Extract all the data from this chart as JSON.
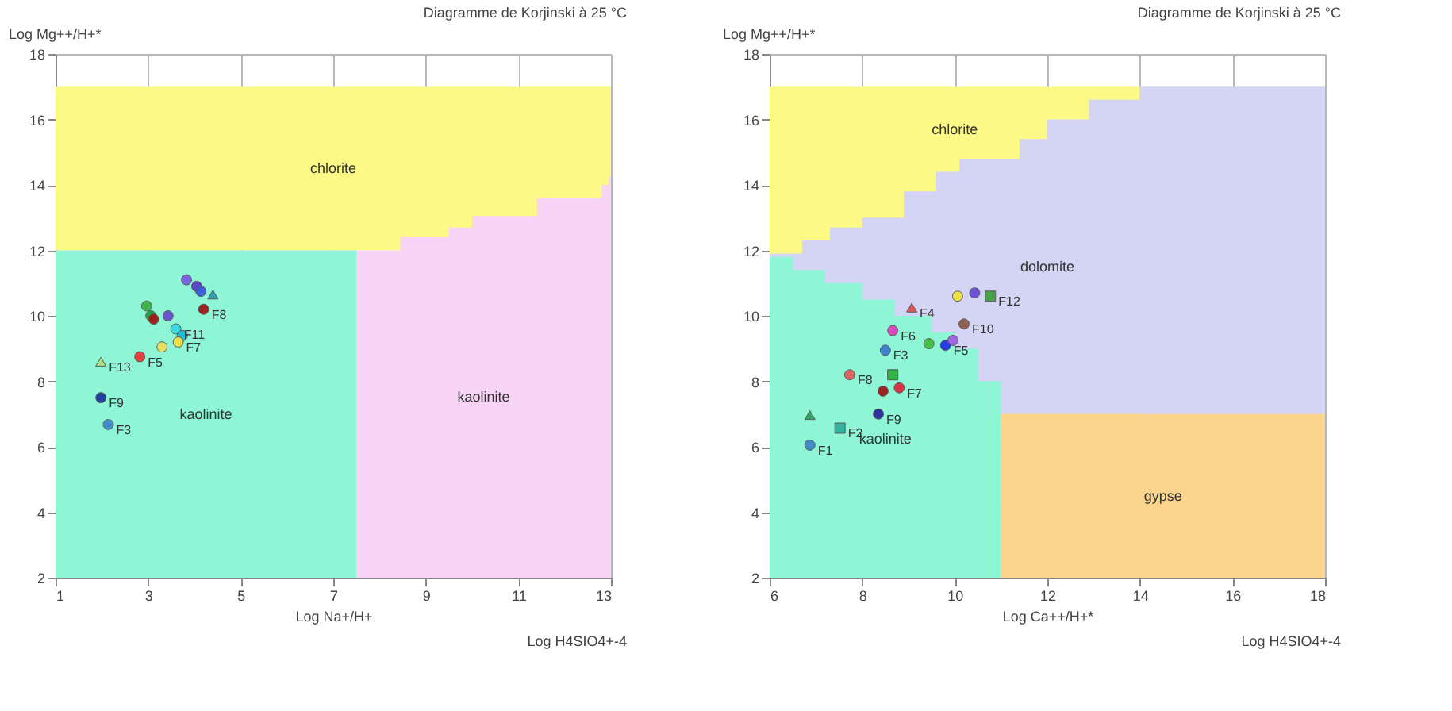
{
  "chart_data": [
    {
      "type": "scatter",
      "title": "Diagramme de Korjinski à 25 °C",
      "xlabel": "Log Na+/H+",
      "ylabel": "Log Mg++/H+*",
      "xlim": [
        1,
        13
      ],
      "ylim": [
        2,
        18
      ],
      "xticks": [
        1,
        3,
        5,
        7,
        9,
        11,
        13
      ],
      "yticks": [
        2,
        4,
        6,
        8,
        10,
        12,
        14,
        16,
        18
      ],
      "grid": true,
      "series": [
        {
          "type": "area",
          "name": "chlorite",
          "color": "#fdf987",
          "x": [
            1,
            13
          ],
          "values": [
            17,
            17
          ]
        },
        {
          "type": "area",
          "name": "kaolinite",
          "color": "#f7d3f5",
          "x": [
            7.5,
            8.45,
            8.45,
            9.5,
            9.5,
            10.0,
            10.0,
            11.4,
            11.4,
            12.8,
            12.8,
            12.95,
            12.95,
            13
          ],
          "values": [
            12,
            12,
            12.4,
            12.4,
            12.7,
            12.7,
            13.05,
            13.05,
            13.6,
            13.6,
            14.0,
            14.0,
            14.25,
            14.25
          ]
        },
        {
          "type": "area",
          "name": "kaolinite",
          "color": "#8ef5d5",
          "x": [
            1,
            7.5
          ],
          "values": [
            12,
            12
          ]
        },
        {
          "type": "scatter",
          "marker": "circle",
          "x": [
            3.83,
            4.05,
            4.14,
            4.2,
            2.97,
            3.06,
            3.12,
            3.43,
            3.6,
            3.74,
            3.65,
            3.3,
            2.82,
            1.98,
            2.14
          ],
          "values": [
            11.1,
            10.9,
            10.75,
            10.2,
            10.3,
            10.0,
            9.9,
            10.0,
            9.6,
            9.4,
            9.2,
            9.05,
            8.75,
            7.5,
            6.68
          ],
          "colors": [
            "#7a5ce0",
            "#5a3cc8",
            "#3a5ad8",
            "#a01818",
            "#3cb04a",
            "#1e9e3c",
            "#a01818",
            "#6a4cc8",
            "#38d8e0",
            "#20b8d0",
            "#f0e040",
            "#e8e060",
            "#e83838",
            "#1a3a9a",
            "#3a8ac8"
          ]
        },
        {
          "type": "scatter",
          "marker": "triangle",
          "x": [
            4.4,
            1.98
          ],
          "values": [
            10.65,
            8.6
          ],
          "colors": [
            "#2a9ab0",
            "#a8e080"
          ]
        }
      ],
      "annotations": [
        {
          "text": "F8",
          "x": 4.2,
          "y": 10.2
        },
        {
          "text": "F11",
          "x": 3.6,
          "y": 9.6
        },
        {
          "text": "F7",
          "x": 3.65,
          "y": 9.2
        },
        {
          "text": "F5",
          "x": 2.82,
          "y": 8.75
        },
        {
          "text": "F13",
          "x": 1.98,
          "y": 8.6
        },
        {
          "text": "F9",
          "x": 1.98,
          "y": 7.5
        },
        {
          "text": "F3",
          "x": 2.14,
          "y": 6.68
        },
        "Log H4SIO4+-4"
      ]
    },
    {
      "type": "scatter",
      "title": "Diagramme de Korjinski à 25 °C",
      "xlabel": "Log Ca++/H+*",
      "ylabel": "Log Mg++/H+*",
      "xlim": [
        6,
        18
      ],
      "ylim": [
        2,
        18
      ],
      "xticks": [
        6,
        8,
        10,
        12,
        14,
        16,
        18
      ],
      "yticks": [
        2,
        4,
        6,
        8,
        10,
        12,
        14,
        16,
        18
      ],
      "grid": true,
      "series": [
        {
          "type": "area",
          "name": "chlorite",
          "color": "#fdf987",
          "x": [
            6,
            14
          ],
          "values": [
            17,
            17
          ]
        },
        {
          "type": "area",
          "name": "dolomite",
          "color": "#d4d4f5",
          "x": [
            6,
            6.7,
            6.7,
            7.3,
            7.3,
            8,
            8,
            8.9,
            8.9,
            9.6,
            9.6,
            10.1,
            10.1,
            11.4,
            11.4,
            12,
            12,
            12.9,
            12.9,
            14,
            14,
            18
          ],
          "values": [
            11.9,
            11.9,
            12.3,
            12.3,
            12.7,
            12.7,
            13,
            13,
            13.8,
            13.8,
            14.4,
            14.4,
            14.8,
            14.8,
            15.4,
            15.4,
            16,
            16,
            16.6,
            16.6,
            17,
            17
          ]
        },
        {
          "type": "area",
          "name": "gypse",
          "color": "#fad48c",
          "x": [
            11,
            18
          ],
          "values": [
            7,
            7
          ]
        },
        {
          "type": "area",
          "name": "kaolinite",
          "color": "#8ef5d5",
          "x": [
            6,
            6.5,
            6.5,
            7.2,
            7.2,
            8,
            8,
            8.7,
            8.7,
            9.5,
            9.5,
            10,
            10,
            10.5,
            10.5,
            11
          ],
          "values": [
            11.8,
            11.8,
            11.4,
            11.4,
            11,
            11,
            10.5,
            10.5,
            10,
            10,
            9.5,
            9.5,
            9,
            9,
            8,
            8
          ]
        },
        {
          "type": "scatter",
          "marker": "circle",
          "x": [
            10.06,
            10.43,
            10.2,
            8.66,
            9.44,
            9.8,
            9.96,
            8.5,
            7.73,
            8.45,
            8.8,
            8.35,
            6.87
          ],
          "values": [
            10.6,
            10.7,
            9.75,
            9.55,
            9.15,
            9.1,
            9.25,
            8.95,
            8.2,
            7.7,
            7.8,
            7.0,
            6.05
          ],
          "colors": [
            "#f0e040",
            "#6a4cd8",
            "#8a5a4a",
            "#e040c0",
            "#40c040",
            "#2030e0",
            "#a060e0",
            "#3a7ad0",
            "#e06060",
            "#a01818",
            "#e02840",
            "#2a2a9a",
            "#3a8ac8"
          ]
        },
        {
          "type": "scatter",
          "marker": "square",
          "x": [
            10.77,
            8.66,
            7.52
          ],
          "values": [
            10.6,
            8.2,
            6.57
          ],
          "colors": [
            "#40a040",
            "#30b040",
            "#30b0a0"
          ]
        },
        {
          "type": "scatter",
          "marker": "triangle",
          "x": [
            9.07,
            6.87
          ],
          "values": [
            10.25,
            6.97
          ],
          "colors": [
            "#e05050",
            "#30a060"
          ]
        }
      ],
      "annotations": [
        {
          "text": "F12",
          "x": 10.77,
          "y": 10.6
        },
        {
          "text": "F4",
          "x": 9.07,
          "y": 10.25
        },
        {
          "text": "F10",
          "x": 10.2,
          "y": 9.75
        },
        {
          "text": "F6",
          "x": 8.66,
          "y": 9.55
        },
        {
          "text": "F5",
          "x": 9.8,
          "y": 9.1
        },
        {
          "text": "F3",
          "x": 8.5,
          "y": 8.95
        },
        {
          "text": "F8",
          "x": 7.73,
          "y": 8.2
        },
        {
          "text": "F7",
          "x": 8.8,
          "y": 7.8
        },
        {
          "text": "F9",
          "x": 8.35,
          "y": 7.0
        },
        {
          "text": "F2",
          "x": 7.52,
          "y": 6.57
        },
        {
          "text": "F1",
          "x": 6.87,
          "y": 6.05
        },
        "Log H4SIO4+-4"
      ]
    }
  ]
}
